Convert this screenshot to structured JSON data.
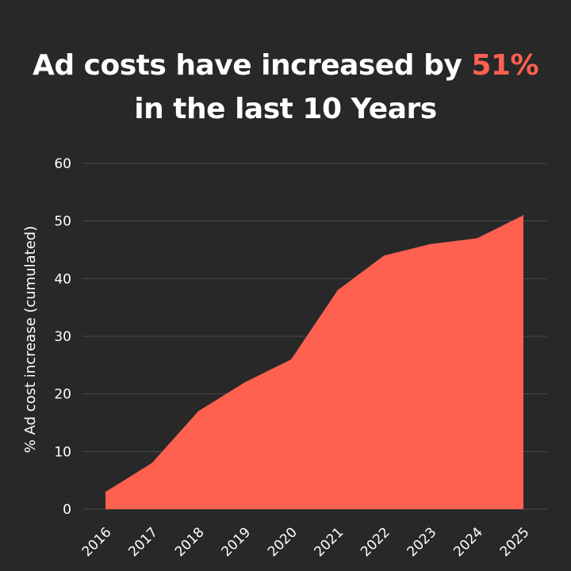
{
  "title": {
    "line1_prefix": "Ad costs have increased by ",
    "line1_highlight": "51%",
    "line2": "in the last 10 Years"
  },
  "colors": {
    "background": "#282828",
    "area": "#ff6150",
    "highlight": "#ff6150",
    "grid": "#4a4a4a",
    "text": "#ffffff"
  },
  "chart_data": {
    "type": "area",
    "title": "Ad costs have increased by 51% in the last 10 Years",
    "xlabel": "",
    "ylabel": "% Ad cost increase (cumulated)",
    "categories": [
      "2016",
      "2017",
      "2018",
      "2019",
      "2020",
      "2021",
      "2022",
      "2023",
      "2024",
      "2025"
    ],
    "values": [
      3,
      8,
      17,
      22,
      26,
      38,
      44,
      46,
      47,
      51
    ],
    "ylim": [
      0,
      60
    ],
    "yticks": [
      "0",
      "10",
      "20",
      "30",
      "40",
      "50",
      "60"
    ],
    "grid": true,
    "legend": "none"
  }
}
